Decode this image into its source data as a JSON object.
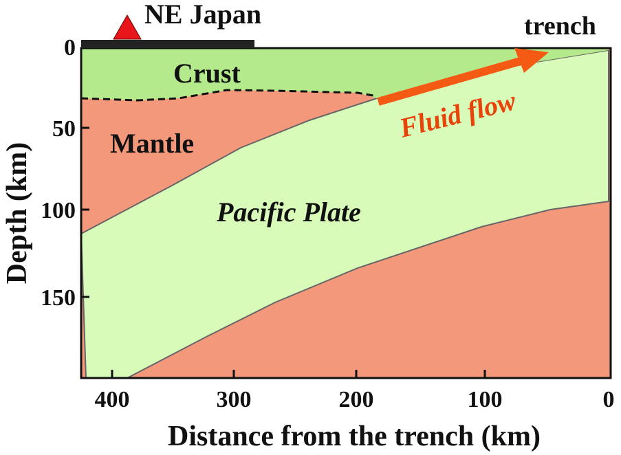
{
  "labels": {
    "ne_japan": "NE Japan",
    "trench": "trench",
    "crust": "Crust",
    "mantle": "Mantle",
    "pacific_plate": "Pacific Plate",
    "fluid_flow": "Fluid flow"
  },
  "axes": {
    "y_label": "Depth (km)",
    "x_label": "Distance from the trench (km)",
    "y_ticks": [
      "0",
      "50",
      "100",
      "150"
    ],
    "x_ticks": [
      "400",
      "300",
      "200",
      "100",
      "0"
    ]
  }
}
